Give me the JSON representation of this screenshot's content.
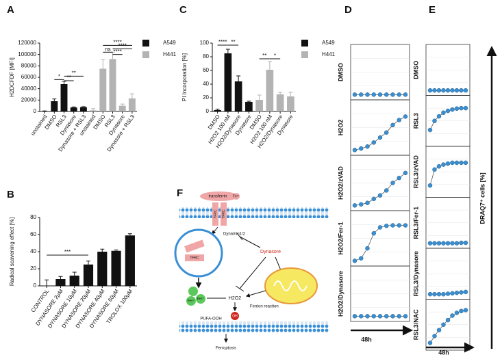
{
  "chart_data": [
    {
      "type": "bar",
      "label": "A",
      "ylabel": "H2DCFDF [MFI]",
      "categories": [
        "unstained",
        "DMSO",
        "RSL3",
        "Dynasore",
        "Dynasore + RSL3",
        "unstained",
        "DMSO",
        "RSL3",
        "Dynasore",
        "Dynasore + RSL3"
      ],
      "series": [
        {
          "name": "A549",
          "color": "#111111",
          "values": [
            0,
            18000,
            48000,
            7000,
            7500,
            null,
            null,
            null,
            null,
            null
          ],
          "errors": [
            1000,
            4000,
            5000,
            1000,
            1000,
            null,
            null,
            null,
            null,
            null
          ]
        },
        {
          "name": "H441",
          "color": "#b3b3b3",
          "values": [
            null,
            null,
            null,
            null,
            null,
            2000,
            75000,
            92000,
            10000,
            23000
          ],
          "errors": [
            null,
            null,
            null,
            null,
            null,
            3000,
            16000,
            12000,
            3000,
            8000
          ]
        }
      ],
      "ylim": [
        0,
        120000
      ],
      "yticks": [
        0,
        20000,
        40000,
        60000,
        80000,
        100000,
        120000
      ],
      "annotations": [
        "*",
        "**",
        "**",
        "ns",
        "****",
        "****",
        "****"
      ]
    },
    {
      "type": "bar",
      "label": "B",
      "ylabel": "Radical scavening effect [%]",
      "categories": [
        "CONTROL",
        "DYNASORE 2µM",
        "DYNASORE 10µM",
        "DYNASORE 20µM",
        "DYNASORE 40µM",
        "DYNASORE 60µM",
        "TROLOX 100µM"
      ],
      "series": [
        {
          "color": "#111111",
          "values": [
            0,
            8,
            12,
            25,
            40,
            41,
            59
          ],
          "errors": [
            7,
            3,
            4,
            4,
            3,
            1,
            2
          ]
        }
      ],
      "ylim": [
        0,
        80
      ],
      "yticks": [
        0,
        20,
        40,
        60,
        80
      ],
      "annotations": [
        "***"
      ]
    },
    {
      "type": "bar",
      "label": "C",
      "ylabel": "PI Incorporation [%]",
      "categories": [
        "DMSO",
        "H2O2 100 nM",
        "H2O2/Dynasore",
        "Dynasore",
        "DMSO",
        "H2O2 100 nM",
        "H2O2/Dynasore",
        "Dynasore"
      ],
      "series": [
        {
          "name": "A549",
          "color": "#111111",
          "values": [
            2,
            85,
            44,
            14,
            null,
            null,
            null,
            null
          ],
          "errors": [
            1.5,
            6,
            8,
            1,
            null,
            null,
            null,
            null
          ]
        },
        {
          "name": "H441",
          "color": "#b3b3b3",
          "values": [
            null,
            null,
            null,
            null,
            17,
            61,
            25,
            22
          ],
          "errors": [
            null,
            null,
            null,
            null,
            7,
            12,
            3,
            6
          ]
        }
      ],
      "ylim": [
        0,
        100
      ],
      "yticks": [
        0,
        20,
        40,
        60,
        80,
        100
      ],
      "annotations": [
        "****",
        "**",
        "**",
        "*"
      ]
    },
    {
      "type": "line",
      "label": "D",
      "xlabel": "48h",
      "color": "#3b8fd0",
      "ylim": [
        0,
        100
      ],
      "panels": [
        {
          "name": "DMSO",
          "values": [
            5,
            5,
            5,
            5,
            5,
            5,
            5,
            5,
            5
          ]
        },
        {
          "name": "H2O2",
          "values": [
            5,
            8,
            12,
            20,
            30,
            40,
            55,
            65,
            72
          ]
        },
        {
          "name": "H2O2/zVAD",
          "values": [
            5,
            7,
            10,
            18,
            25,
            35,
            50,
            60,
            70
          ]
        },
        {
          "name": "H2O2/Fer-1",
          "values": [
            5,
            10,
            30,
            60,
            72,
            75,
            76,
            76,
            76
          ]
        },
        {
          "name": "H2O2/Dynasore",
          "values": [
            5,
            5,
            5,
            5,
            5,
            5,
            5,
            5,
            5
          ]
        }
      ]
    },
    {
      "type": "line",
      "label": "E",
      "xlabel": "48h",
      "ylabel": "DRAQ7⁺ cells [%]",
      "color": "#3b8fd0",
      "ylim": [
        0,
        100
      ],
      "panels": [
        {
          "name": "DMSO",
          "values": [
            5,
            5,
            5,
            5,
            5,
            5,
            5,
            5,
            5
          ]
        },
        {
          "name": "RSL3",
          "values": [
            30,
            50,
            60,
            68,
            72,
            75,
            77,
            78,
            78
          ]
        },
        {
          "name": "RSL3/zVAD",
          "values": [
            20,
            55,
            62,
            66,
            68,
            70,
            70,
            70,
            70
          ]
        },
        {
          "name": "RSL3/Fer-1",
          "values": [
            5,
            5,
            5,
            5,
            5,
            5,
            5,
            6,
            6
          ]
        },
        {
          "name": "RSL3/Dynasore",
          "values": [
            5,
            5,
            5,
            5,
            6,
            7,
            8,
            9,
            10
          ]
        },
        {
          "name": "RSL3/NAC",
          "values": [
            10,
            25,
            38,
            50,
            60,
            70,
            76,
            80,
            82
          ]
        }
      ]
    }
  ],
  "diagram": {
    "label": "F",
    "transferrin": "transferrin",
    "fe3": "Fe³⁺",
    "tfrc": "TFRC",
    "dynamin": "Dynamin1/2",
    "dynasore": "Dynasore",
    "fe2": "Fe²⁺",
    "h2o2": "H2O2",
    "fenton": "Fenton reaction",
    "pufa": "PUFA-OOH",
    "oh": "OH",
    "ferroptosis": "Ferroptosis"
  }
}
